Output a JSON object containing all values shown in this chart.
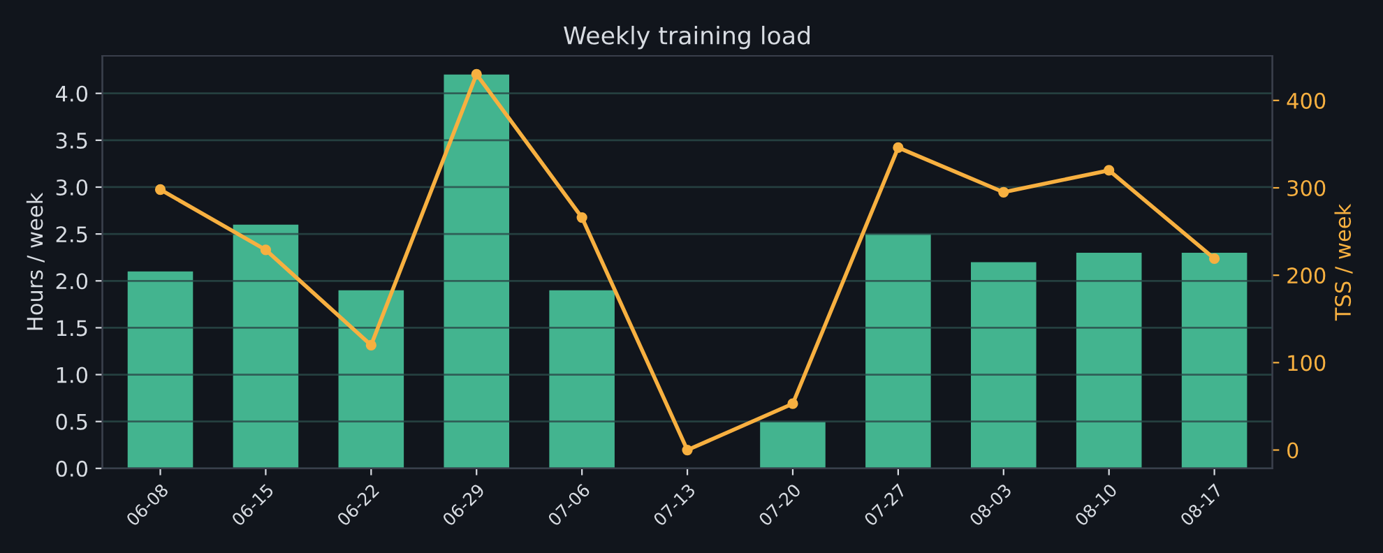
{
  "chart_data": {
    "type": "bar",
    "title": "Weekly training load",
    "ylabel": "Hours / week",
    "y2label": "TSS / week",
    "categories": [
      "06-08",
      "06-15",
      "06-22",
      "06-29",
      "07-06",
      "07-13",
      "07-20",
      "07-27",
      "08-03",
      "08-10",
      "08-17"
    ],
    "series": [
      {
        "color": "#43b48f",
        "values": [
          2.1,
          2.6,
          1.9,
          4.2,
          1.9,
          0,
          0.5,
          2.5,
          2.2,
          2.3,
          2.3
        ]
      },
      {
        "type": "line",
        "axis": "y2",
        "color": "#f7b040",
        "marker": "circle",
        "values": [
          298,
          229,
          120,
          430,
          266,
          0,
          53,
          346,
          295,
          320,
          219
        ]
      }
    ],
    "ylim": [
      0,
      4.4
    ],
    "yticks": [
      {
        "value": 0,
        "label": "0.0"
      },
      0.5,
      {
        "value": 1,
        "label": "1.0"
      },
      1.5,
      {
        "value": 2,
        "label": "2.0"
      },
      2.5,
      {
        "value": 3,
        "label": "3.0"
      },
      3.5,
      {
        "value": 4,
        "label": "4.0"
      }
    ],
    "y2lim": [
      -21,
      451
    ],
    "y2ticks": [
      0,
      100,
      200,
      300,
      400
    ],
    "grid": "y",
    "legend": false
  }
}
